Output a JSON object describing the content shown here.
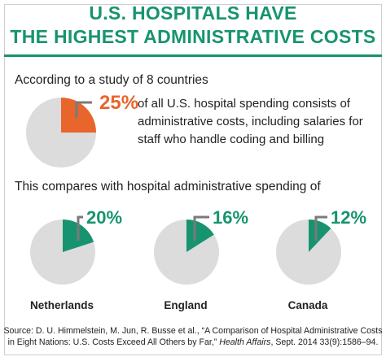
{
  "title_line1": "U.S. HOSPITALS HAVE",
  "title_line2": "THE HIGHEST ADMINISTRATIVE COSTS",
  "lead": "According to a study of 8 countries",
  "main_pct": "25%",
  "main_text": "of all U.S. hospital spending consists of administrative costs, including salaries for staff who handle coding and billing",
  "compare": "This compares with hospital administrative spending of",
  "source_pre": "Source: D. U. Himmelstein, M. Jun, R. Busse et al., “A Comparison of Hospital Administrative Costs in Eight Nations: U.S. Costs Exceed All Others by Far,” ",
  "source_journal": "Health Affairs",
  "source_post": ", Sept. 2014 33(9):1586–94.",
  "colors": {
    "brand": "#17946f",
    "us": "#e8652b",
    "rest": "#dcdcdc",
    "leader": "#7a7a7a"
  },
  "chart_data": [
    {
      "type": "pie",
      "label": "U.S.",
      "value": 25,
      "value_label": "25%"
    },
    {
      "type": "pie",
      "label": "Netherlands",
      "value": 20,
      "value_label": "20%"
    },
    {
      "type": "pie",
      "label": "England",
      "value": 16,
      "value_label": "16%"
    },
    {
      "type": "pie",
      "label": "Canada",
      "value": 12,
      "value_label": "12%"
    }
  ]
}
